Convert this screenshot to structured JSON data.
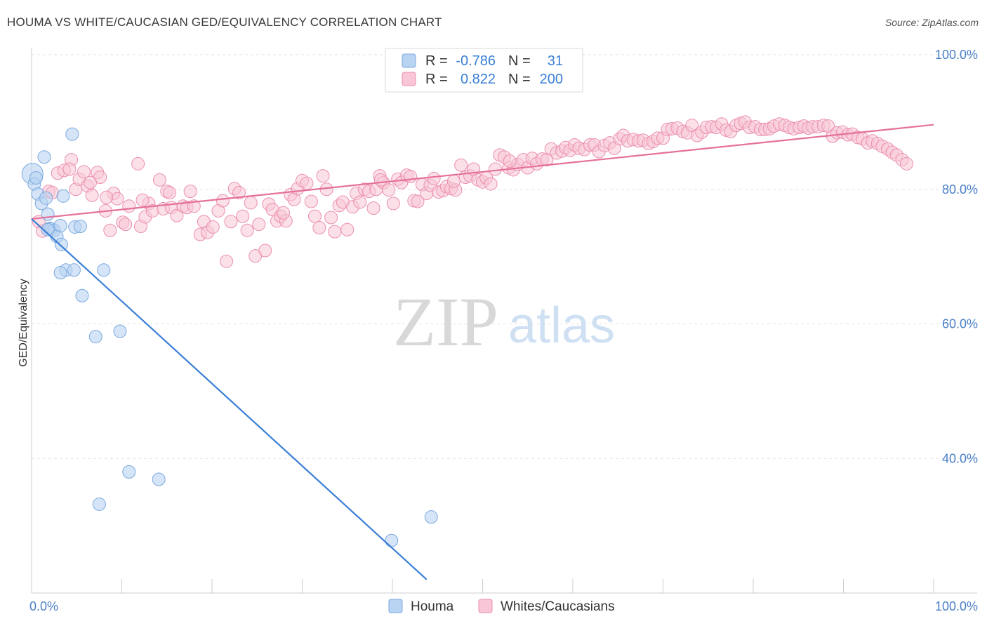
{
  "title": "HOUMA VS WHITE/CAUCASIAN GED/EQUIVALENCY CORRELATION CHART",
  "source": "Source: ZipAtlas.com",
  "watermark": {
    "zip": "ZIP",
    "atlas": "atlas"
  },
  "colors": {
    "blue_fill": "#b9d3f2",
    "blue_stroke": "#7aa8e0",
    "blue_line": "#3a7fd6",
    "pink_fill": "#f8c6d6",
    "pink_stroke": "#eb8fae",
    "pink_line": "#e5709a",
    "tick_text": "#4a7fc8",
    "grid": "#e2e2e2"
  },
  "legend": {
    "rows": [
      {
        "r_label": "R =",
        "r_value": "-0.786",
        "n_label": "N =",
        "n_value": "31"
      },
      {
        "r_label": "R =",
        "r_value": "0.822",
        "n_label": "N =",
        "n_value": "200"
      }
    ]
  },
  "chart_data": {
    "type": "scatter",
    "title": "HOUMA VS WHITE/CAUCASIAN GED/EQUIVALENCY CORRELATION CHART",
    "xlabel": "",
    "ylabel": "GED/Equivalency",
    "xlim": [
      0,
      100
    ],
    "ylim": [
      20,
      100
    ],
    "x_tick_labels": [
      "0.0%",
      "100.0%"
    ],
    "y_ticks": [
      40,
      60,
      80,
      100
    ],
    "y_tick_labels": [
      "40.0%",
      "60.0%",
      "80.0%",
      "100.0%"
    ],
    "grid": true,
    "legend_position": "bottom-center",
    "series": [
      {
        "name": "Houma",
        "color": "#b9d3f2",
        "r": -0.786,
        "n": 31,
        "trend": {
          "x": [
            0,
            43.8
          ],
          "y": [
            75.6,
            22.0
          ]
        },
        "points": [
          [
            0.1,
            82.3
          ],
          [
            0.3,
            80.8
          ],
          [
            0.5,
            81.7
          ],
          [
            0.7,
            79.3
          ],
          [
            1.1,
            77.9
          ],
          [
            1.4,
            84.8
          ],
          [
            1.6,
            78.7
          ],
          [
            1.8,
            76.3
          ],
          [
            2.0,
            74.2
          ],
          [
            2.2,
            74.1
          ],
          [
            2.5,
            73.9
          ],
          [
            2.8,
            73.0
          ],
          [
            3.2,
            74.6
          ],
          [
            3.3,
            71.8
          ],
          [
            3.5,
            79.0
          ],
          [
            3.8,
            68.0
          ],
          [
            4.5,
            88.2
          ],
          [
            4.8,
            74.4
          ],
          [
            3.2,
            67.6
          ],
          [
            4.7,
            68.0
          ],
          [
            5.4,
            74.5
          ],
          [
            5.6,
            64.2
          ],
          [
            7.1,
            58.1
          ],
          [
            8.0,
            68.0
          ],
          [
            9.8,
            58.9
          ],
          [
            10.8,
            38.0
          ],
          [
            14.1,
            36.9
          ],
          [
            7.5,
            33.2
          ],
          [
            39.9,
            27.8
          ],
          [
            44.3,
            31.3
          ],
          [
            1.8,
            74.0
          ]
        ]
      },
      {
        "name": "Whites/Caucasians",
        "color": "#f8c6d6",
        "r": 0.822,
        "n": 200,
        "trend": {
          "x": [
            0,
            100
          ],
          "y": [
            75.6,
            89.6
          ]
        },
        "points": [
          [
            0.8,
            75.2
          ],
          [
            1.2,
            73.8
          ],
          [
            1.9,
            79.7
          ],
          [
            2.3,
            79.5
          ],
          [
            2.9,
            82.4
          ],
          [
            3.6,
            82.8
          ],
          [
            4.4,
            84.4
          ],
          [
            4.9,
            80.0
          ],
          [
            5.3,
            81.5
          ],
          [
            5.8,
            82.6
          ],
          [
            6.2,
            80.5
          ],
          [
            6.7,
            79.1
          ],
          [
            7.3,
            82.5
          ],
          [
            7.6,
            81.8
          ],
          [
            8.2,
            76.8
          ],
          [
            8.7,
            73.9
          ],
          [
            9.1,
            79.4
          ],
          [
            9.5,
            78.6
          ],
          [
            10.1,
            75.1
          ],
          [
            10.4,
            74.8
          ],
          [
            10.8,
            77.5
          ],
          [
            11.8,
            83.8
          ],
          [
            12.1,
            74.5
          ],
          [
            12.6,
            75.9
          ],
          [
            13.0,
            77.9
          ],
          [
            13.4,
            76.8
          ],
          [
            14.2,
            81.4
          ],
          [
            14.6,
            77.1
          ],
          [
            15.0,
            79.7
          ],
          [
            15.5,
            77.3
          ],
          [
            16.1,
            76.1
          ],
          [
            16.8,
            77.5
          ],
          [
            17.2,
            77.3
          ],
          [
            17.6,
            79.7
          ],
          [
            18.0,
            77.5
          ],
          [
            18.7,
            73.3
          ],
          [
            19.1,
            75.2
          ],
          [
            19.5,
            73.6
          ],
          [
            20.1,
            74.4
          ],
          [
            20.7,
            76.8
          ],
          [
            21.2,
            78.3
          ],
          [
            21.6,
            69.3
          ],
          [
            22.1,
            75.2
          ],
          [
            22.5,
            80.1
          ],
          [
            23.0,
            79.5
          ],
          [
            23.4,
            76.0
          ],
          [
            23.9,
            73.9
          ],
          [
            24.3,
            78.0
          ],
          [
            24.8,
            70.1
          ],
          [
            25.2,
            74.8
          ],
          [
            25.9,
            70.9
          ],
          [
            26.3,
            77.8
          ],
          [
            26.7,
            77.0
          ],
          [
            27.2,
            75.3
          ],
          [
            27.6,
            76.0
          ],
          [
            28.2,
            75.3
          ],
          [
            28.7,
            79.2
          ],
          [
            29.1,
            78.5
          ],
          [
            29.5,
            80.1
          ],
          [
            30.0,
            81.3
          ],
          [
            30.5,
            80.9
          ],
          [
            31.0,
            78.2
          ],
          [
            31.4,
            76.0
          ],
          [
            31.9,
            74.3
          ],
          [
            32.3,
            82.0
          ],
          [
            32.7,
            80.0
          ],
          [
            33.2,
            75.8
          ],
          [
            33.6,
            73.7
          ],
          [
            34.1,
            77.6
          ],
          [
            34.5,
            78.1
          ],
          [
            35.0,
            74.0
          ],
          [
            35.6,
            77.4
          ],
          [
            36.0,
            79.4
          ],
          [
            36.4,
            78.1
          ],
          [
            36.9,
            80.0
          ],
          [
            37.4,
            79.7
          ],
          [
            37.9,
            77.2
          ],
          [
            38.2,
            80.0
          ],
          [
            38.6,
            82.0
          ],
          [
            39.0,
            81.0
          ],
          [
            39.6,
            79.9
          ],
          [
            40.1,
            77.9
          ],
          [
            40.6,
            81.5
          ],
          [
            41.0,
            81.0
          ],
          [
            41.6,
            82.1
          ],
          [
            42.0,
            81.9
          ],
          [
            42.4,
            78.3
          ],
          [
            42.8,
            78.2
          ],
          [
            43.3,
            80.7
          ],
          [
            43.8,
            79.4
          ],
          [
            44.2,
            80.6
          ],
          [
            44.6,
            81.6
          ],
          [
            45.1,
            79.6
          ],
          [
            45.6,
            79.8
          ],
          [
            46.0,
            80.4
          ],
          [
            46.5,
            80.1
          ],
          [
            47.0,
            79.9
          ],
          [
            47.6,
            83.6
          ],
          [
            48.1,
            81.8
          ],
          [
            48.6,
            82.0
          ],
          [
            49.0,
            83.0
          ],
          [
            49.5,
            81.4
          ],
          [
            50.0,
            81.1
          ],
          [
            50.4,
            81.7
          ],
          [
            50.9,
            80.8
          ],
          [
            51.4,
            83.0
          ],
          [
            51.9,
            85.1
          ],
          [
            52.4,
            84.8
          ],
          [
            52.9,
            83.2
          ],
          [
            53.4,
            82.9
          ],
          [
            53.9,
            83.7
          ],
          [
            54.5,
            84.4
          ],
          [
            55.0,
            83.2
          ],
          [
            55.5,
            84.6
          ],
          [
            56.0,
            83.8
          ],
          [
            56.6,
            84.5
          ],
          [
            57.1,
            84.4
          ],
          [
            57.6,
            86.0
          ],
          [
            58.2,
            85.4
          ],
          [
            58.8,
            85.7
          ],
          [
            59.2,
            86.2
          ],
          [
            59.7,
            85.8
          ],
          [
            60.2,
            86.6
          ],
          [
            60.7,
            86.1
          ],
          [
            61.3,
            85.9
          ],
          [
            61.9,
            86.6
          ],
          [
            62.4,
            86.6
          ],
          [
            62.9,
            85.6
          ],
          [
            63.5,
            86.5
          ],
          [
            64.1,
            86.9
          ],
          [
            64.6,
            86.1
          ],
          [
            65.2,
            87.5
          ],
          [
            65.6,
            88.0
          ],
          [
            66.1,
            87.2
          ],
          [
            66.7,
            87.4
          ],
          [
            67.3,
            87.2
          ],
          [
            67.8,
            87.3
          ],
          [
            68.4,
            86.8
          ],
          [
            68.9,
            87.1
          ],
          [
            69.4,
            87.6
          ],
          [
            70.0,
            87.6
          ],
          [
            70.5,
            88.9
          ],
          [
            71.0,
            89.0
          ],
          [
            71.6,
            89.1
          ],
          [
            72.2,
            88.6
          ],
          [
            72.7,
            88.4
          ],
          [
            73.2,
            89.5
          ],
          [
            73.8,
            88.0
          ],
          [
            74.3,
            88.5
          ],
          [
            74.8,
            89.2
          ],
          [
            75.4,
            89.3
          ],
          [
            75.9,
            89.2
          ],
          [
            76.5,
            89.7
          ],
          [
            77.0,
            88.8
          ],
          [
            77.5,
            88.6
          ],
          [
            78.1,
            89.5
          ],
          [
            78.6,
            89.8
          ],
          [
            79.1,
            90.0
          ],
          [
            79.6,
            89.2
          ],
          [
            80.2,
            89.3
          ],
          [
            80.8,
            88.9
          ],
          [
            81.3,
            88.9
          ],
          [
            81.8,
            89.0
          ],
          [
            82.3,
            89.4
          ],
          [
            82.9,
            89.7
          ],
          [
            83.5,
            89.5
          ],
          [
            84.0,
            89.2
          ],
          [
            84.5,
            89.0
          ],
          [
            85.1,
            89.2
          ],
          [
            85.6,
            89.4
          ],
          [
            86.1,
            89.1
          ],
          [
            86.6,
            89.3
          ],
          [
            87.2,
            89.3
          ],
          [
            87.8,
            89.5
          ],
          [
            88.3,
            89.4
          ],
          [
            88.8,
            87.9
          ],
          [
            89.3,
            88.4
          ],
          [
            89.9,
            88.5
          ],
          [
            90.5,
            88.1
          ],
          [
            91.0,
            88.2
          ],
          [
            91.6,
            87.7
          ],
          [
            92.1,
            87.5
          ],
          [
            92.7,
            86.9
          ],
          [
            93.2,
            87.2
          ],
          [
            93.8,
            86.8
          ],
          [
            94.3,
            86.4
          ],
          [
            94.9,
            86.0
          ],
          [
            95.4,
            85.5
          ],
          [
            95.9,
            85.1
          ],
          [
            96.5,
            84.4
          ],
          [
            97.0,
            83.8
          ],
          [
            53.0,
            84.2
          ],
          [
            46.8,
            81.2
          ],
          [
            38.7,
            81.4
          ],
          [
            27.9,
            76.5
          ],
          [
            15.3,
            79.5
          ],
          [
            8.3,
            78.8
          ],
          [
            4.2,
            83.0
          ],
          [
            6.5,
            81.0
          ],
          [
            12.3,
            78.4
          ]
        ]
      }
    ]
  },
  "bottom_legend": [
    {
      "label": "Houma"
    },
    {
      "label": "Whites/Caucasians"
    }
  ]
}
